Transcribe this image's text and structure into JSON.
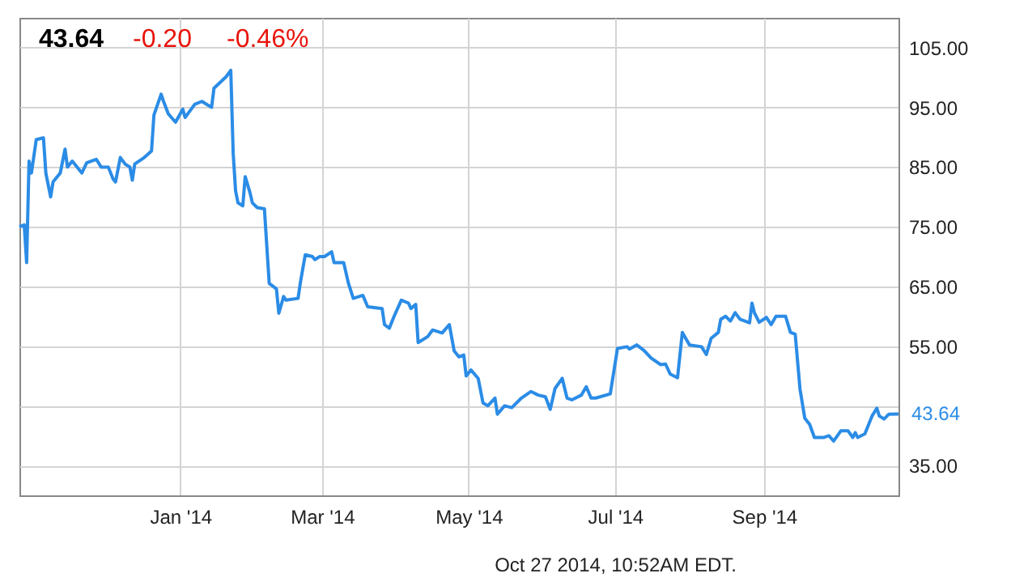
{
  "chart_data": {
    "type": "line",
    "title": "43.64",
    "annotations": [
      "-0.20",
      "-0.46%",
      "Oct 27 2014, 10:52AM EDT.",
      {
        "text": "43.64",
        "x": "2014-10-27",
        "y": 43.64
      }
    ],
    "x": [
      "2013-10-26",
      "2013-10-28",
      "2013-10-29",
      "2013-10-30",
      "2013-10-31",
      "2013-11-02",
      "2013-11-05",
      "2013-11-06",
      "2013-11-08",
      "2013-11-09",
      "2013-11-12",
      "2013-11-14",
      "2013-11-15",
      "2013-11-17",
      "2013-11-21",
      "2013-11-23",
      "2013-11-27",
      "2013-11-29",
      "2013-12-02",
      "2013-12-04",
      "2013-12-05",
      "2013-12-07",
      "2013-12-09",
      "2013-12-11",
      "2013-12-12",
      "2013-12-13",
      "2013-12-17",
      "2013-12-20",
      "2013-12-21",
      "2013-12-24",
      "2013-12-25",
      "2013-12-27",
      "2013-12-30",
      "2014-01-02",
      "2014-01-03",
      "2014-01-07",
      "2014-01-10",
      "2014-01-14",
      "2014-01-15",
      "2014-01-20",
      "2014-01-22",
      "2014-01-23",
      "2014-01-24",
      "2014-01-25",
      "2014-01-27",
      "2014-01-28",
      "2014-01-30",
      "2014-01-31",
      "2014-02-02",
      "2014-02-05",
      "2014-02-07",
      "2014-02-10",
      "2014-02-11",
      "2014-02-13",
      "2014-02-14",
      "2014-02-19",
      "2014-02-20",
      "2014-02-22",
      "2014-02-25",
      "2014-02-26",
      "2014-02-28",
      "2014-03-02",
      "2014-03-05",
      "2014-03-06",
      "2014-03-10",
      "2014-03-12",
      "2014-03-14",
      "2014-03-18",
      "2014-03-20",
      "2014-03-26",
      "2014-03-27",
      "2014-03-29",
      "2014-03-31",
      "2014-04-03",
      "2014-04-06",
      "2014-04-07",
      "2014-04-09",
      "2014-04-10",
      "2014-04-14",
      "2014-04-16",
      "2014-04-20",
      "2014-04-23",
      "2014-04-25",
      "2014-04-27",
      "2014-04-29",
      "2014-04-30",
      "2014-05-02",
      "2014-05-05",
      "2014-05-07",
      "2014-05-09",
      "2014-05-12",
      "2014-05-13",
      "2014-05-16",
      "2014-05-19",
      "2014-05-23",
      "2014-05-27",
      "2014-05-30",
      "2014-06-02",
      "2014-06-04",
      "2014-06-06",
      "2014-06-09",
      "2014-06-11",
      "2014-06-13",
      "2014-06-17",
      "2014-06-19",
      "2014-06-21",
      "2014-06-23",
      "2014-06-29",
      "2014-07-02",
      "2014-07-06",
      "2014-07-07",
      "2014-07-10",
      "2014-07-13",
      "2014-07-16",
      "2014-07-20",
      "2014-07-22",
      "2014-07-24",
      "2014-07-27",
      "2014-07-29",
      "2014-08-01",
      "2014-08-06",
      "2014-08-08",
      "2014-08-10",
      "2014-08-13",
      "2014-08-14",
      "2014-08-16",
      "2014-08-18",
      "2014-08-20",
      "2014-08-22",
      "2014-08-26",
      "2014-08-27",
      "2014-08-28",
      "2014-08-30",
      "2014-09-02",
      "2014-09-04",
      "2014-09-06",
      "2014-09-10",
      "2014-09-12",
      "2014-09-14",
      "2014-09-16",
      "2014-09-18",
      "2014-09-20",
      "2014-09-22",
      "2014-09-26",
      "2014-09-28",
      "2014-09-30",
      "2014-10-03",
      "2014-10-06",
      "2014-10-08",
      "2014-10-09",
      "2014-10-10",
      "2014-10-13",
      "2014-10-16",
      "2014-10-18",
      "2014-10-19",
      "2014-10-21",
      "2014-10-23",
      "2014-10-27"
    ],
    "series": [
      {
        "color": "#2b8ce6",
        "values": [
          75,
          75.3,
          69,
          86,
          84,
          89.6,
          89.9,
          84,
          80,
          82.5,
          84,
          88,
          85,
          86,
          84,
          85.7,
          86.3,
          85,
          85,
          83,
          82.5,
          86.6,
          85.5,
          85,
          82.8,
          85.5,
          86.6,
          87.7,
          93.7,
          97.2,
          96,
          93.9,
          92.5,
          94.7,
          93.3,
          95.5,
          96,
          95,
          98.2,
          100.1,
          101.2,
          87.3,
          81,
          79,
          78.5,
          83.4,
          80.7,
          79,
          78.2,
          78,
          65.5,
          64.6,
          60.5,
          63.3,
          62.7,
          63,
          65.7,
          70.3,
          70,
          69.5,
          70,
          70,
          70.8,
          69,
          69,
          65.5,
          63,
          63.5,
          61.6,
          61.3,
          58.6,
          58,
          60,
          62.7,
          62.2,
          61.3,
          62,
          55.6,
          56.6,
          57.7,
          57.2,
          58.6,
          54.2,
          53.2,
          53.5,
          50,
          51,
          49.6,
          45.5,
          45,
          46.3,
          43.6,
          45,
          44.7,
          46.3,
          47.4,
          46.8,
          46.5,
          44.4,
          47.9,
          49.6,
          46.3,
          46,
          46.8,
          48.2,
          46.3,
          46.3,
          47,
          54.6,
          54.9,
          54.5,
          55.2,
          54.3,
          53,
          51.9,
          52,
          50.3,
          49.7,
          57.3,
          55.2,
          54.9,
          53.6,
          56.3,
          57.3,
          59.5,
          60,
          59.2,
          60.6,
          59.5,
          58.9,
          62.2,
          60.6,
          59,
          59.8,
          58.6,
          60,
          60,
          57.3,
          57,
          47.8,
          42.9,
          41.9,
          39.7,
          39.7,
          40,
          39.1,
          40.8,
          40.8,
          39.7,
          40.5,
          39.7,
          40.3,
          43.3,
          44.6,
          43.3,
          42.8,
          43.6,
          43.64
        ]
      }
    ],
    "xlim": [
      "2013-10-26",
      "2014-10-27"
    ],
    "xticks": [
      {
        "value": "2014-01-01",
        "label": "Jan '14"
      },
      {
        "value": "2014-03-01",
        "label": "Mar '14"
      },
      {
        "value": "2014-05-01",
        "label": "May '14"
      },
      {
        "value": "2014-07-01",
        "label": "Jul '14"
      },
      {
        "value": "2014-09-01",
        "label": "Sep '14"
      }
    ],
    "ylim": [
      30,
      110
    ],
    "yticks": [
      {
        "value": 35,
        "label": "35.00"
      },
      {
        "value": 45,
        "label": null
      },
      {
        "value": 55,
        "label": "55.00"
      },
      {
        "value": 65,
        "label": "65.00"
      },
      {
        "value": 75,
        "label": "75.00"
      },
      {
        "value": 85,
        "label": "85.00"
      },
      {
        "value": 95,
        "label": "95.00"
      },
      {
        "value": 105,
        "label": "105.00"
      }
    ],
    "grid": true,
    "marker": "none",
    "line_style": "solid"
  }
}
